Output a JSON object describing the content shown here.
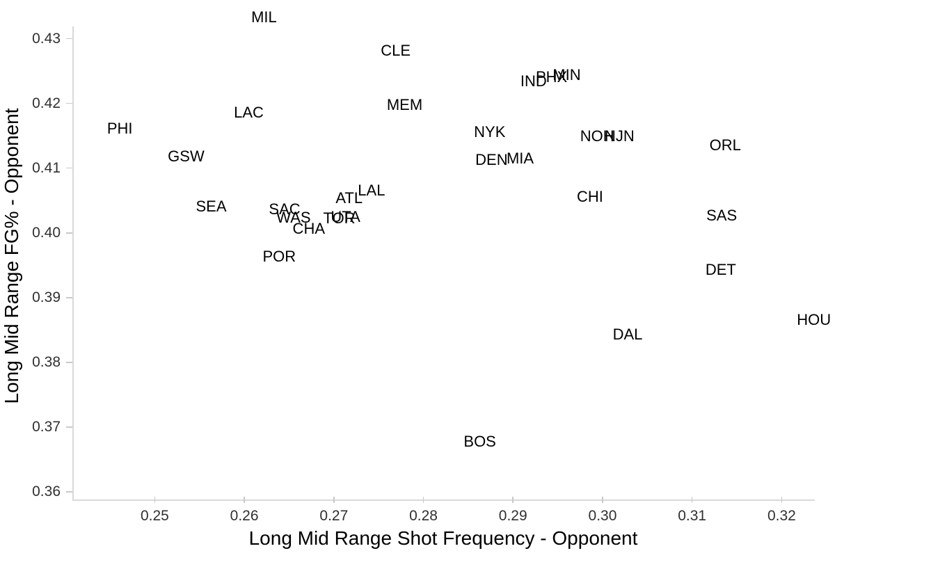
{
  "chart_data": {
    "type": "scatter",
    "marker_style": "team-abbreviation-text",
    "title": "",
    "xlabel": "Long Mid Range Shot Frequency - Opponent",
    "ylabel": "Long Mid Range FG% - Opponent",
    "xlim": [
      0.2408,
      0.3237
    ],
    "ylim": [
      0.3587,
      0.4319
    ],
    "grid": false,
    "legend": false,
    "x_ticks": [
      {
        "value": 0.25,
        "label": "0.25"
      },
      {
        "value": 0.26,
        "label": "0.26"
      },
      {
        "value": 0.27,
        "label": "0.27"
      },
      {
        "value": 0.28,
        "label": "0.28"
      },
      {
        "value": 0.29,
        "label": "0.29"
      },
      {
        "value": 0.3,
        "label": "0.30"
      },
      {
        "value": 0.31,
        "label": "0.31"
      },
      {
        "value": 0.32,
        "label": "0.32"
      }
    ],
    "y_ticks": [
      {
        "value": 0.43,
        "label": "0.43"
      },
      {
        "value": 0.42,
        "label": "0.42"
      },
      {
        "value": 0.41,
        "label": "0.41"
      },
      {
        "value": 0.4,
        "label": "0.40"
      },
      {
        "value": 0.39,
        "label": "0.39"
      },
      {
        "value": 0.38,
        "label": "0.38"
      },
      {
        "value": 0.37,
        "label": "0.37"
      },
      {
        "value": 0.36,
        "label": "0.36"
      }
    ],
    "points": [
      {
        "team": "MIL",
        "x": 0.2622,
        "y": 0.4333
      },
      {
        "team": "CLE",
        "x": 0.2769,
        "y": 0.4281
      },
      {
        "team": "MEM",
        "x": 0.2779,
        "y": 0.4198
      },
      {
        "team": "LAC",
        "x": 0.2605,
        "y": 0.4186
      },
      {
        "team": "PHI",
        "x": 0.2461,
        "y": 0.4161
      },
      {
        "team": "GSW",
        "x": 0.2535,
        "y": 0.4118
      },
      {
        "team": "SEA",
        "x": 0.2563,
        "y": 0.4041
      },
      {
        "team": "SAC",
        "x": 0.2645,
        "y": 0.4036
      },
      {
        "team": "WAS",
        "x": 0.2655,
        "y": 0.4023
      },
      {
        "team": "CHA",
        "x": 0.2672,
        "y": 0.4006
      },
      {
        "team": "TOR",
        "x": 0.2706,
        "y": 0.4022
      },
      {
        "team": "UTA",
        "x": 0.2713,
        "y": 0.4025
      },
      {
        "team": "ATL",
        "x": 0.2717,
        "y": 0.4053
      },
      {
        "team": "LAL",
        "x": 0.2742,
        "y": 0.4065
      },
      {
        "team": "POR",
        "x": 0.2639,
        "y": 0.3963
      },
      {
        "team": "IND",
        "x": 0.2923,
        "y": 0.4234
      },
      {
        "team": "PHX",
        "x": 0.2943,
        "y": 0.424
      },
      {
        "team": "MIN",
        "x": 0.296,
        "y": 0.4244
      },
      {
        "team": "NYK",
        "x": 0.2874,
        "y": 0.4156
      },
      {
        "team": "DEN",
        "x": 0.2876,
        "y": 0.4113
      },
      {
        "team": "MIA",
        "x": 0.2908,
        "y": 0.4115
      },
      {
        "team": "NOH",
        "x": 0.2994,
        "y": 0.4149
      },
      {
        "team": "NJN",
        "x": 0.3019,
        "y": 0.4149
      },
      {
        "team": "ORL",
        "x": 0.3137,
        "y": 0.4135
      },
      {
        "team": "CHI",
        "x": 0.2986,
        "y": 0.4056
      },
      {
        "team": "SAS",
        "x": 0.3133,
        "y": 0.4027
      },
      {
        "team": "DET",
        "x": 0.3132,
        "y": 0.3943
      },
      {
        "team": "DAL",
        "x": 0.3028,
        "y": 0.3843
      },
      {
        "team": "HOU",
        "x": 0.3236,
        "y": 0.3865
      },
      {
        "team": "BOS",
        "x": 0.2863,
        "y": 0.3677
      }
    ],
    "colors": {
      "background": "#ffffff",
      "axis_line": "#d9d9d9",
      "tick_mark": "#c9c9c9",
      "tick_label": "#303030",
      "point_label": "#000000",
      "axis_title": "#000000"
    }
  }
}
